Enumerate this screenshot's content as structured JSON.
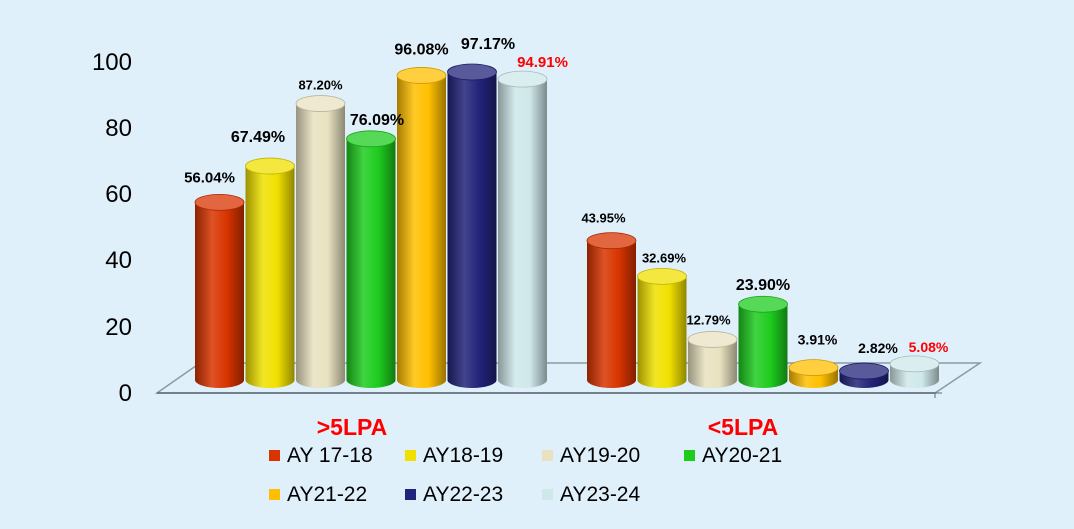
{
  "chart_data": {
    "type": "bar",
    "categories": [
      ">5LPA",
      "<5LPA"
    ],
    "ylim": [
      0,
      100
    ],
    "yticks": [
      "0",
      "20",
      "40",
      "60",
      "80",
      "100"
    ],
    "grid": false,
    "legend_position": "bottom",
    "series": [
      {
        "name": "AY 17-18",
        "color": "#d83400",
        "values": [
          56.04,
          43.95
        ],
        "labels": [
          "56.04%",
          "43.95%"
        ]
      },
      {
        "name": "AY18-19",
        "color": "#f0e000",
        "values": [
          67.49,
          32.69
        ],
        "labels": [
          "67.49%",
          "32.69%"
        ]
      },
      {
        "name": "AY19-20",
        "color": "#e8e2c0",
        "values": [
          87.2,
          12.79
        ],
        "labels": [
          "87.20%",
          "12.79%"
        ]
      },
      {
        "name": "AY20-21",
        "color": "#1ecc1e",
        "values": [
          76.09,
          23.9
        ],
        "labels": [
          "76.09%",
          "23.90%"
        ]
      },
      {
        "name": "AY21-22",
        "color": "#ffbf00",
        "values": [
          96.08,
          3.91
        ],
        "labels": [
          "96.08%",
          "3.91%"
        ]
      },
      {
        "name": "AY22-23",
        "color": "#22237a",
        "values": [
          97.17,
          2.82
        ],
        "labels": [
          "97.17%",
          "2.82%"
        ]
      },
      {
        "name": "AY23-24",
        "color": "#cfe8ea",
        "values": [
          94.91,
          5.08
        ],
        "labels": [
          "94.91%",
          "5.08%"
        ]
      }
    ]
  }
}
